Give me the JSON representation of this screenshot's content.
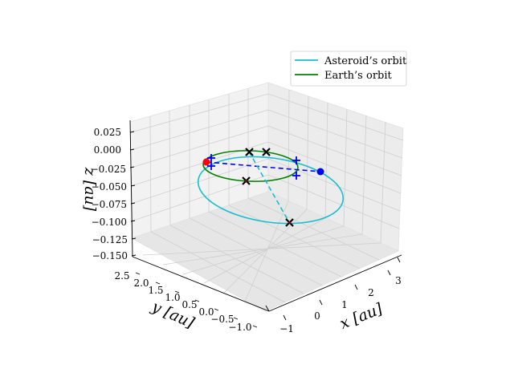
{
  "chart_data": {
    "type": "line3d",
    "xlabel": "x [au]",
    "ylabel": "y [au]",
    "zlabel": "z [au]",
    "x_ticks": [
      "−1",
      "0",
      "1",
      "2",
      "3"
    ],
    "y_ticks": [
      "2.5",
      "2.0",
      "1.5",
      "1.0",
      "0.5",
      "0.0",
      "−0.5",
      "−1.0"
    ],
    "z_ticks": [
      "0.025",
      "0.000",
      "−0.025",
      "−0.050",
      "−0.075",
      "−0.100",
      "−0.125",
      "−0.150"
    ],
    "grid": true,
    "legend_position": "top-right",
    "series": [
      {
        "name": "Asteroid’s orbit",
        "color": "#17becf",
        "kind": "orbit",
        "semi_major_axis_au": 1.75,
        "eccentricity": 0.43,
        "inclination_deg": 1.2,
        "perihelion_au": 1.0,
        "aphelion_au": 2.5
      },
      {
        "name": "Earth’s orbit",
        "color": "#008000",
        "kind": "orbit",
        "semi_major_axis_au": 1.0,
        "eccentricity": 0.0,
        "inclination_deg": 0.0
      }
    ],
    "markers": [
      {
        "label": "sun",
        "symbol": "x",
        "color": "#000000",
        "x": 0.0,
        "y": 0.0,
        "z": 0.0
      },
      {
        "label": "earth-departure",
        "symbol": "x",
        "color": "#000000",
        "x": -0.2,
        "y": 0.98,
        "z": 0.0
      },
      {
        "label": "asteroid-departure",
        "symbol": "x",
        "color": "#8b0000",
        "x": 0.25,
        "y": -0.95,
        "z": -0.02
      },
      {
        "label": "asteroid-arrival",
        "symbol": "x",
        "color": "#8b0000",
        "x": 2.0,
        "y": -1.05,
        "z": -0.12
      },
      {
        "label": "asteroid-perihelion",
        "symbol": "dot",
        "color": "#ff0000",
        "x": -0.95,
        "y": 0.2,
        "z": -0.01
      },
      {
        "label": "asteroid-aphelion",
        "symbol": "dot",
        "color": "#0000ff",
        "x": 2.45,
        "y": 0.4,
        "z": 0.02
      },
      {
        "label": "node-1",
        "symbol": "+",
        "color": "#0000ff",
        "x": -0.9,
        "y": 0.35,
        "z": 0.0
      },
      {
        "label": "node-2",
        "symbol": "+",
        "color": "#0000ff",
        "x": -0.9,
        "y": 0.15,
        "z": -0.01
      },
      {
        "label": "node-3",
        "symbol": "+",
        "color": "#0000ff",
        "x": 1.5,
        "y": 0.55,
        "z": 0.01
      },
      {
        "label": "node-4",
        "symbol": "+",
        "color": "#0000ff",
        "x": 1.55,
        "y": 0.2,
        "z": -0.01
      }
    ],
    "lines": [
      {
        "label": "apsidal-line",
        "style": "dashed",
        "color": "#0000ff",
        "from": "asteroid-perihelion",
        "to": "asteroid-aphelion"
      },
      {
        "label": "transfer-line",
        "style": "dashed",
        "color": "#17becf",
        "from": "earth-departure",
        "to": "asteroid-arrival"
      }
    ]
  }
}
